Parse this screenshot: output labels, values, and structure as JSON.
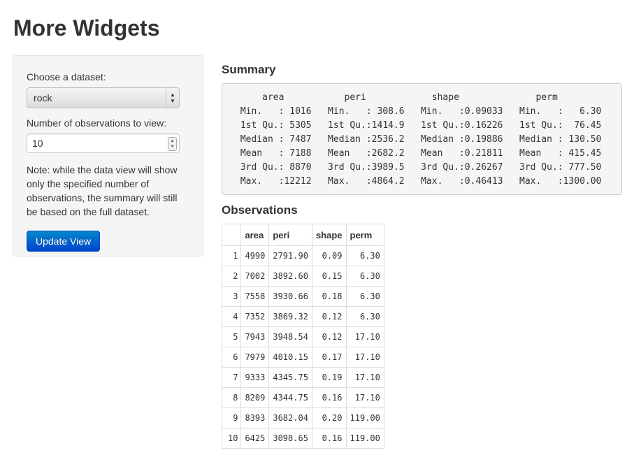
{
  "page": {
    "title": "More Widgets"
  },
  "sidebar": {
    "dataset_label": "Choose a dataset:",
    "dataset_value": "rock",
    "obs_label": "Number of observations to view:",
    "obs_value": "10",
    "note": "Note: while the data view will show only the specified number of observations, the summary will still be based on the full dataset.",
    "update_button": "Update View"
  },
  "summary": {
    "heading": "Summary",
    "text": "     area           peri            shape              perm        \n Min.   : 1016   Min.   : 308.6   Min.   :0.09033   Min.   :   6.30  \n 1st Qu.: 5305   1st Qu.:1414.9   1st Qu.:0.16226   1st Qu.:  76.45  \n Median : 7487   Median :2536.2   Median :0.19886   Median : 130.50  \n Mean   : 7188   Mean   :2682.2   Mean   :0.21811   Mean   : 415.45  \n 3rd Qu.: 8870   3rd Qu.:3989.5   3rd Qu.:0.26267   3rd Qu.: 777.50  \n Max.   :12212   Max.   :4864.2   Max.   :0.46413   Max.   :1300.00  "
  },
  "observations": {
    "heading": "Observations",
    "columns": [
      "",
      "area",
      "peri",
      "shape",
      "perm"
    ],
    "rows": [
      [
        "1",
        "4990",
        "2791.90",
        "0.09",
        "6.30"
      ],
      [
        "2",
        "7002",
        "3892.60",
        "0.15",
        "6.30"
      ],
      [
        "3",
        "7558",
        "3930.66",
        "0.18",
        "6.30"
      ],
      [
        "4",
        "7352",
        "3869.32",
        "0.12",
        "6.30"
      ],
      [
        "5",
        "7943",
        "3948.54",
        "0.12",
        "17.10"
      ],
      [
        "6",
        "7979",
        "4010.15",
        "0.17",
        "17.10"
      ],
      [
        "7",
        "9333",
        "4345.75",
        "0.19",
        "17.10"
      ],
      [
        "8",
        "8209",
        "4344.75",
        "0.16",
        "17.10"
      ],
      [
        "9",
        "8393",
        "3682.04",
        "0.20",
        "119.00"
      ],
      [
        "10",
        "6425",
        "3098.65",
        "0.16",
        "119.00"
      ]
    ]
  },
  "icons": {
    "select": "updown-arrows-icon",
    "spinner": "spinner-arrows-icon"
  },
  "colors": {
    "button_top": "#0088cc",
    "button_bottom": "#0044cc",
    "panel_bg": "#f5f5f5"
  }
}
